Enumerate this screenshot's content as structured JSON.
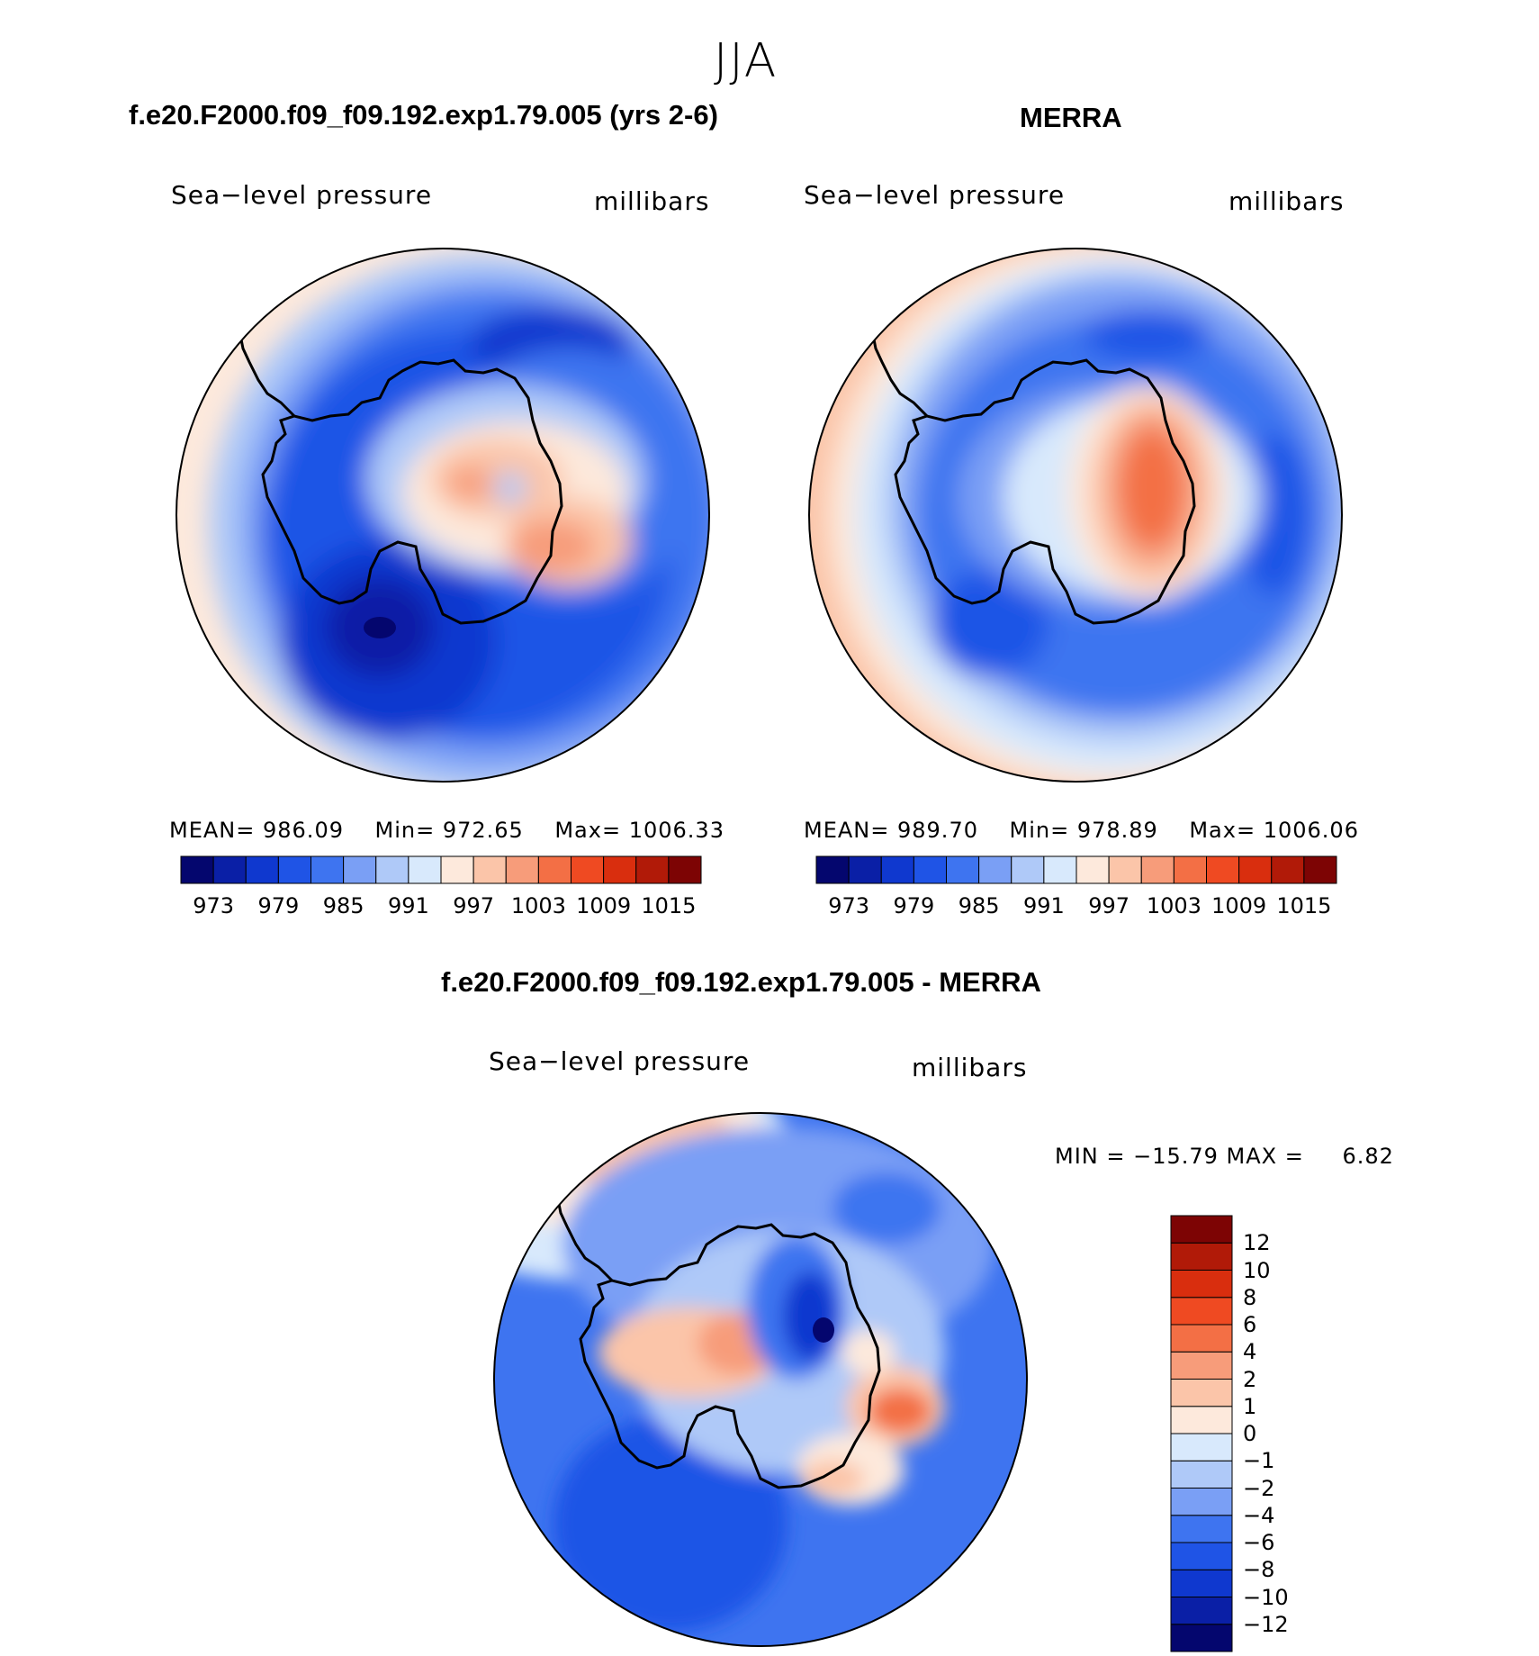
{
  "figure": {
    "season": "JJA",
    "model_title": "f.e20.F2000.f09_f09.192.exp1.79.005 (yrs 2-6)",
    "obs_title": "MERRA",
    "diff_title": "f.e20.F2000.f09_f09.192.exp1.79.005 - MERRA"
  },
  "panels": {
    "model": {
      "variable": "Sea−level pressure",
      "units": "millibars",
      "mean_label": "MEAN=",
      "mean": "986.09",
      "min_label": "Min=",
      "min": "972.65",
      "max_label": "Max=",
      "max": "1006.33"
    },
    "obs": {
      "variable": "Sea−level pressure",
      "units": "millibars",
      "mean_label": "MEAN=",
      "mean": "989.70",
      "min_label": "Min=",
      "min": "978.89",
      "max_label": "Max=",
      "max": "1006.06"
    },
    "diff": {
      "variable": "Sea−level pressure",
      "units": "millibars",
      "minmax_text": "MIN = −15.79 MAX =",
      "max_value": "6.82"
    }
  },
  "colorbars": {
    "abs_colors": [
      "#04066e",
      "#0a1fa6",
      "#0f38cf",
      "#1f54e6",
      "#3e74f0",
      "#7a9ff5",
      "#afc9f8",
      "#d8e9fc",
      "#fde9dc",
      "#fbc5a9",
      "#f79c7a",
      "#f36f45",
      "#ef4a22",
      "#d92e0e",
      "#b11a08",
      "#7d0404"
    ],
    "abs_ticks": [
      "973",
      "979",
      "985",
      "991",
      "997",
      "1003",
      "1009",
      "1015"
    ],
    "diff_colors": [
      "#04066e",
      "#0a1fa6",
      "#0f38cf",
      "#1f54e6",
      "#3e74f0",
      "#7a9ff5",
      "#afc9f8",
      "#d8e9fc",
      "#fde9dc",
      "#fbc5a9",
      "#f79c7a",
      "#f36f45",
      "#ef4a22",
      "#d92e0e",
      "#b11a08",
      "#7d0404"
    ],
    "diff_ticks": [
      "−12",
      "−10",
      "−8",
      "−6",
      "−4",
      "−2",
      "−1",
      "0",
      "1",
      "2",
      "4",
      "6",
      "8",
      "10",
      "12"
    ]
  },
  "map_colors": {
    "ocean_deep": "#0f38cf",
    "ocean_mid": "#1f54e6",
    "ocean_light": "#3e74f0",
    "pale_blue": "#7a9ff5",
    "very_pale_blue": "#afc9f8",
    "near_white": "#d8e9fc",
    "pale_red": "#fde9dc",
    "light_red": "#fbc5a9",
    "mid_red": "#f79c7a",
    "strong_red": "#f36f45",
    "coast": "#000000"
  }
}
